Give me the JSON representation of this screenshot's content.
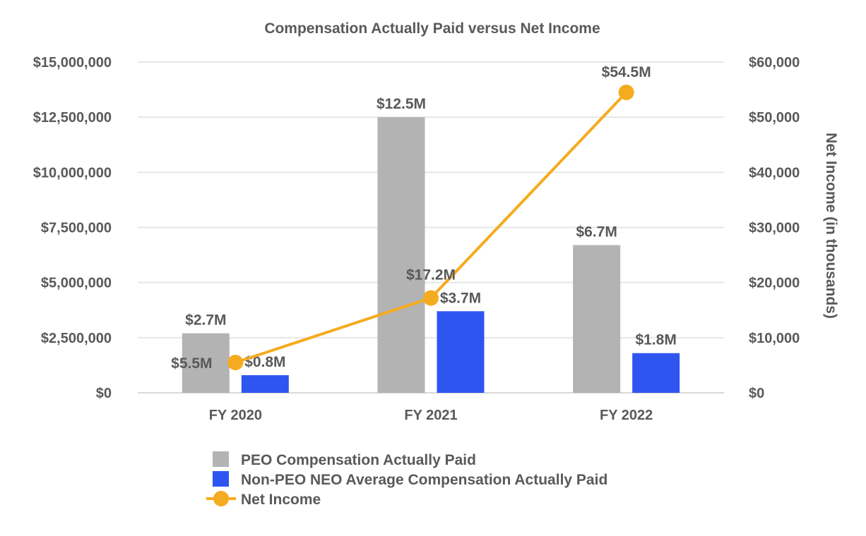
{
  "chart_data": {
    "type": "bar",
    "title": "Compensation Actually Paid versus Net Income",
    "categories": [
      "FY 2020",
      "FY 2021",
      "FY 2022"
    ],
    "ylim": [
      0,
      15000000
    ],
    "y_ticks": [
      "$0",
      "$2,500,000",
      "$5,000,000",
      "$7,500,000",
      "$10,000,000",
      "$12,500,000",
      "$15,000,000"
    ],
    "y2label": "Net Income (in thousands)",
    "y2lim": [
      0,
      60000
    ],
    "y2_ticks": [
      "$0",
      "$10,000",
      "$20,000",
      "$30,000",
      "$40,000",
      "$50,000",
      "$60,000"
    ],
    "grid": true,
    "legend_position": "bottom",
    "series": [
      {
        "name": "PEO Compensation Actually Paid",
        "kind": "bar",
        "axis": "left",
        "color": "#b3b3b3",
        "values": [
          2700000,
          12500000,
          6700000
        ],
        "labels": [
          "$2.7M",
          "$12.5M",
          "$6.7M"
        ]
      },
      {
        "name": "Non-PEO NEO Average Compensation Actually Paid",
        "kind": "bar",
        "axis": "left",
        "color": "#2f55f0",
        "values": [
          800000,
          3700000,
          1800000
        ],
        "labels": [
          "$0.8M",
          "$3.7M",
          "$1.8M"
        ]
      },
      {
        "name": "Net Income",
        "kind": "line",
        "axis": "right",
        "color": "#f5ab1f",
        "values": [
          5500,
          17200,
          54500
        ],
        "labels": [
          "$5.5M",
          "$17.2M",
          "$54.5M"
        ]
      }
    ]
  }
}
